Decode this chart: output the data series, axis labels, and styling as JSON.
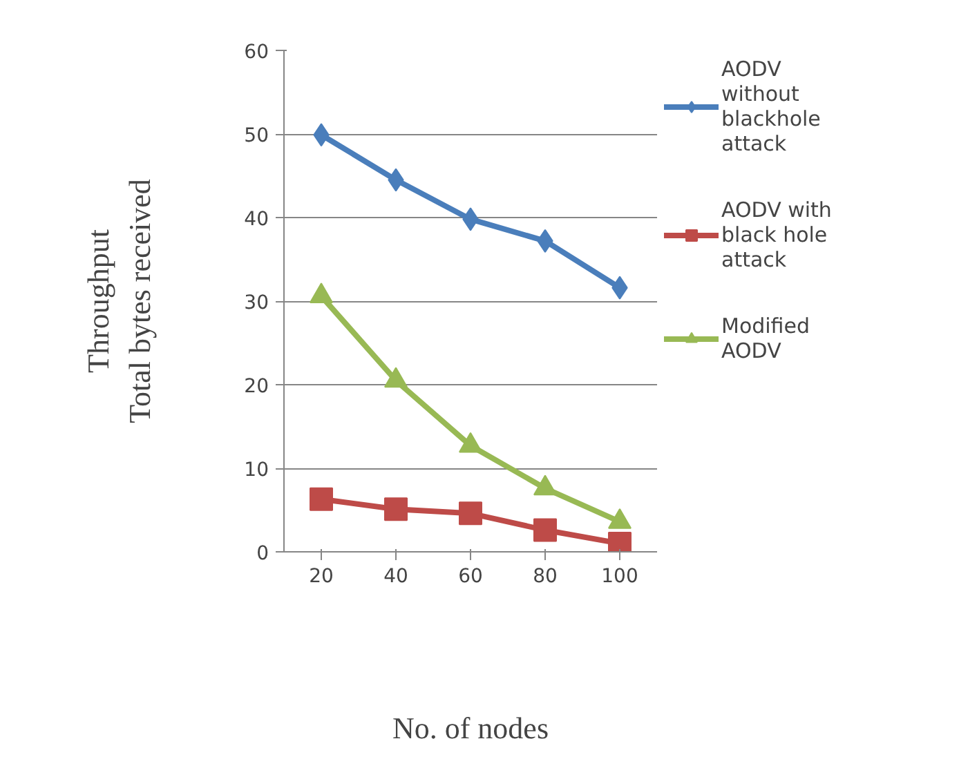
{
  "chart_data": {
    "type": "line",
    "xlabel": "No. of nodes",
    "ylabel": "Throughput\nTotal bytes received",
    "categories": [
      "20",
      "40",
      "60",
      "80",
      "100"
    ],
    "ylim": [
      0,
      60
    ],
    "yticks": [
      0,
      10,
      20,
      30,
      40,
      50,
      60
    ],
    "grid": "y",
    "legend": "right",
    "line_style": "solid",
    "series": [
      {
        "name": "AODV without blackhole attack",
        "color": "#4a7ebb",
        "marker": "diamond",
        "values": [
          49.9,
          44.5,
          39.8,
          37.2,
          31.6
        ]
      },
      {
        "name": "AODV with black hole attack",
        "color": "#be4b48",
        "marker": "square",
        "values": [
          6.3,
          5.1,
          4.6,
          2.6,
          1.0
        ]
      },
      {
        "name": "Modified AODV",
        "color": "#98b954",
        "marker": "triangle",
        "values": [
          30.6,
          20.5,
          12.7,
          7.6,
          3.6
        ]
      }
    ]
  }
}
